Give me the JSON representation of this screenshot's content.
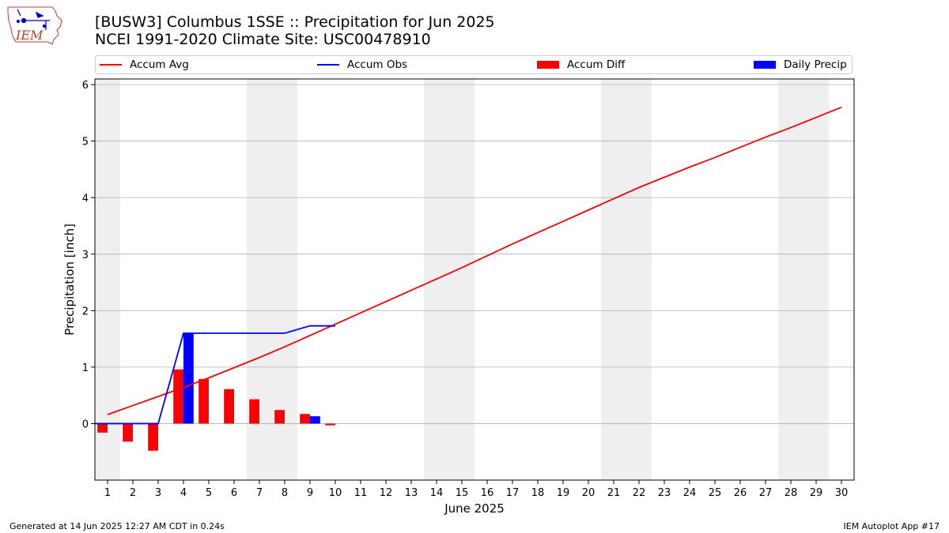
{
  "title_line1": "[BUSW3] Columbus 1SSE :: Precipitation for Jun 2025",
  "title_line2": "NCEI 1991-2020 Climate Site: USC00478910",
  "logo_text": "IEM",
  "footer_left": "Generated at 14 Jun 2025 12:27 AM CDT in 0.24s",
  "footer_right": "IEM Autoplot App #17",
  "colors": {
    "avg": "#ff0000",
    "obs": "#0000ff",
    "diff": "#ff0000",
    "daily": "#0000ff",
    "weekend": "#efefef",
    "grid": "#b0b0b0"
  },
  "chart_data": {
    "type": "bar",
    "xlabel": "June 2025",
    "ylabel": "Precipitation [inch]",
    "xlim": [
      0.5,
      30.5
    ],
    "ylim": [
      -1.0,
      6.1
    ],
    "yticks": [
      0,
      1,
      2,
      3,
      4,
      5,
      6
    ],
    "days": [
      1,
      2,
      3,
      4,
      5,
      6,
      7,
      8,
      9,
      10,
      11,
      12,
      13,
      14,
      15,
      16,
      17,
      18,
      19,
      20,
      21,
      22,
      23,
      24,
      25,
      26,
      27,
      28,
      29,
      30
    ],
    "weekend_spans": [
      [
        0.5,
        1.5
      ],
      [
        6.5,
        8.5
      ],
      [
        13.5,
        15.5
      ],
      [
        20.5,
        22.5
      ],
      [
        27.5,
        29.5
      ]
    ],
    "legend": [
      {
        "key": "avg",
        "label": "Accum Avg",
        "kind": "line"
      },
      {
        "key": "obs",
        "label": "Accum Obs",
        "kind": "line"
      },
      {
        "key": "diff",
        "label": "Accum Diff",
        "kind": "bar"
      },
      {
        "key": "daily",
        "label": "Daily Precip",
        "kind": "bar"
      }
    ],
    "accum_avg": [
      0.16,
      0.32,
      0.48,
      0.64,
      0.81,
      0.99,
      1.17,
      1.36,
      1.56,
      1.76,
      1.96,
      2.16,
      2.36,
      2.56,
      2.76,
      2.97,
      3.18,
      3.38,
      3.58,
      3.78,
      3.98,
      4.18,
      4.36,
      4.54,
      4.71,
      4.89,
      5.07,
      5.24,
      5.42,
      5.6
    ],
    "accum_obs": [
      0.0,
      0.0,
      0.0,
      1.6,
      1.6,
      1.6,
      1.6,
      1.6,
      1.73,
      1.73
    ],
    "accum_diff": [
      -0.16,
      -0.32,
      -0.48,
      0.96,
      0.79,
      0.61,
      0.43,
      0.24,
      0.17,
      -0.03
    ],
    "daily_precip": [
      0.0,
      0.0,
      0.0,
      1.6,
      0.0,
      0.0,
      0.0,
      0.0,
      0.13,
      0.0
    ]
  }
}
